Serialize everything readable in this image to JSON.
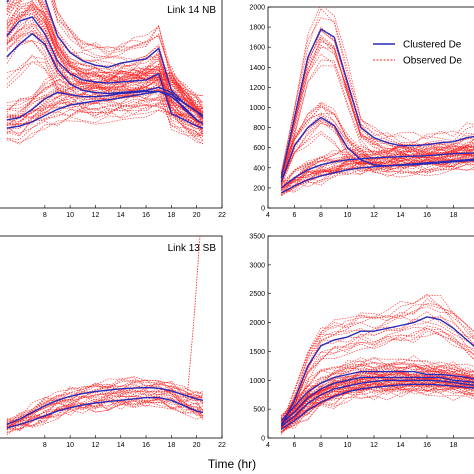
{
  "chart_data": [
    {
      "type": "line",
      "title": "Link 14 NB",
      "xlabel": "",
      "ylabel": "",
      "xlim": [
        4.3,
        22
      ],
      "x_ticks": [
        "8",
        "10",
        "12",
        "14",
        "16",
        "18",
        "20",
        "22"
      ],
      "y_ticks": [],
      "ylim": [
        0,
        1000
      ],
      "x": [
        5,
        6,
        7,
        8,
        9,
        10,
        11,
        12,
        13,
        14,
        15,
        16,
        17,
        18,
        19,
        20,
        20.5
      ],
      "series": [
        {
          "name": "Clustered Demand",
          "values": [
            820,
            890,
            910,
            830,
            700,
            640,
            610,
            600,
            595,
            600,
            605,
            610,
            640,
            450,
            420,
            390,
            380
          ]
        },
        {
          "name": "Clustered Demand",
          "values": [
            720,
            780,
            830,
            780,
            660,
            590,
            560,
            550,
            545,
            550,
            555,
            560,
            575,
            550,
            470,
            420,
            400
          ]
        },
        {
          "name": "Clustered Demand",
          "values": [
            420,
            430,
            470,
            520,
            550,
            540,
            530,
            530,
            535,
            545,
            550,
            555,
            555,
            540,
            500,
            460,
            440
          ]
        },
        {
          "name": "Clustered Demand",
          "values": [
            380,
            390,
            410,
            440,
            470,
            490,
            500,
            510,
            515,
            525,
            535,
            545,
            555,
            530,
            480,
            420,
            400
          ]
        },
        {
          "name": "Clustered Demand",
          "values": [
            980,
            1080,
            1130,
            1000,
            820,
            740,
            700,
            680,
            670,
            690,
            700,
            710,
            760,
            560,
            500,
            460,
            430
          ]
        }
      ]
    },
    {
      "type": "line",
      "title": "",
      "xlabel": "",
      "ylabel": "",
      "xlim": [
        4,
        20
      ],
      "ylim": [
        0,
        2000
      ],
      "x_ticks": [
        "4",
        "6",
        "8",
        "10",
        "12",
        "14",
        "16",
        "18"
      ],
      "y_ticks": [
        "0",
        "200",
        "400",
        "600",
        "800",
        "1000",
        "1200",
        "1400",
        "1600",
        "1800",
        "2000"
      ],
      "legend": [
        "Clustered De",
        "Observed De"
      ],
      "legend_position": "top-right",
      "x": [
        5,
        6,
        7,
        8,
        9,
        10,
        11,
        12,
        13,
        14,
        15,
        16,
        17,
        18,
        19,
        20
      ],
      "series": [
        {
          "name": "Clustered De",
          "values": [
            300,
            900,
            1500,
            1780,
            1700,
            1250,
            800,
            700,
            650,
            620,
            620,
            630,
            650,
            660,
            700,
            720
          ]
        },
        {
          "name": "Clustered De",
          "values": [
            260,
            620,
            800,
            900,
            820,
            600,
            480,
            430,
            420,
            425,
            430,
            440,
            450,
            460,
            470,
            480
          ]
        },
        {
          "name": "Clustered De",
          "values": [
            200,
            300,
            380,
            430,
            460,
            480,
            490,
            500,
            505,
            510,
            515,
            520,
            530,
            540,
            545,
            550
          ]
        },
        {
          "name": "Clustered De",
          "values": [
            150,
            220,
            280,
            320,
            350,
            380,
            400,
            410,
            420,
            430,
            440,
            450,
            460,
            470,
            480,
            490
          ]
        }
      ]
    },
    {
      "type": "line",
      "title": "Link 13 SB",
      "xlabel": "",
      "ylabel": "",
      "xlim": [
        4.3,
        22
      ],
      "ylim": [
        0,
        3000
      ],
      "x_ticks": [
        "8",
        "10",
        "12",
        "14",
        "16",
        "18",
        "20",
        "22"
      ],
      "y_ticks": [],
      "x": [
        5,
        6,
        7,
        8,
        9,
        10,
        11,
        12,
        13,
        14,
        15,
        16,
        17,
        18,
        19,
        20,
        20.5
      ],
      "series": [
        {
          "name": "Clustered Demand",
          "values": [
            200,
            280,
            380,
            480,
            560,
            620,
            660,
            690,
            710,
            730,
            740,
            750,
            740,
            700,
            640,
            580,
            560
          ]
        },
        {
          "name": "Clustered Demand",
          "values": [
            150,
            200,
            260,
            330,
            400,
            450,
            490,
            520,
            540,
            560,
            580,
            600,
            600,
            560,
            480,
            400,
            380
          ]
        }
      ]
    },
    {
      "type": "line",
      "title": "",
      "xlabel": "Time (hr)",
      "ylabel": "",
      "xlim": [
        4,
        20
      ],
      "ylim": [
        0,
        3500
      ],
      "x_ticks": [
        "4",
        "6",
        "8",
        "10",
        "12",
        "14",
        "16",
        "18"
      ],
      "y_ticks": [
        "0",
        "500",
        "1000",
        "1500",
        "2000",
        "2500",
        "3000",
        "3500"
      ],
      "x": [
        5,
        6,
        7,
        8,
        9,
        10,
        11,
        12,
        13,
        14,
        15,
        16,
        17,
        18,
        19,
        20
      ],
      "series": [
        {
          "name": "Clustered Demand",
          "values": [
            200,
            650,
            1250,
            1600,
            1700,
            1750,
            1850,
            1850,
            1900,
            1950,
            2000,
            2100,
            2050,
            1900,
            1700,
            1500
          ]
        },
        {
          "name": "Clustered Demand",
          "values": [
            300,
            550,
            800,
            950,
            1050,
            1100,
            1150,
            1150,
            1150,
            1150,
            1150,
            1100,
            1100,
            1080,
            1050,
            1000
          ]
        },
        {
          "name": "Clustered Demand",
          "values": [
            250,
            450,
            700,
            850,
            950,
            1000,
            1050,
            1050,
            1050,
            1050,
            1050,
            1050,
            1050,
            1000,
            980,
            950
          ]
        },
        {
          "name": "Clustered Demand",
          "values": [
            200,
            380,
            600,
            750,
            850,
            900,
            950,
            980,
            1000,
            1000,
            1000,
            1000,
            990,
            960,
            930,
            900
          ]
        },
        {
          "name": "Clustered Demand",
          "values": [
            150,
            300,
            480,
            620,
            720,
            800,
            850,
            880,
            900,
            920,
            930,
            930,
            920,
            900,
            880,
            850
          ]
        }
      ]
    }
  ],
  "colors": {
    "clustered": "#2a2ab8",
    "observed": "#ff2020"
  }
}
